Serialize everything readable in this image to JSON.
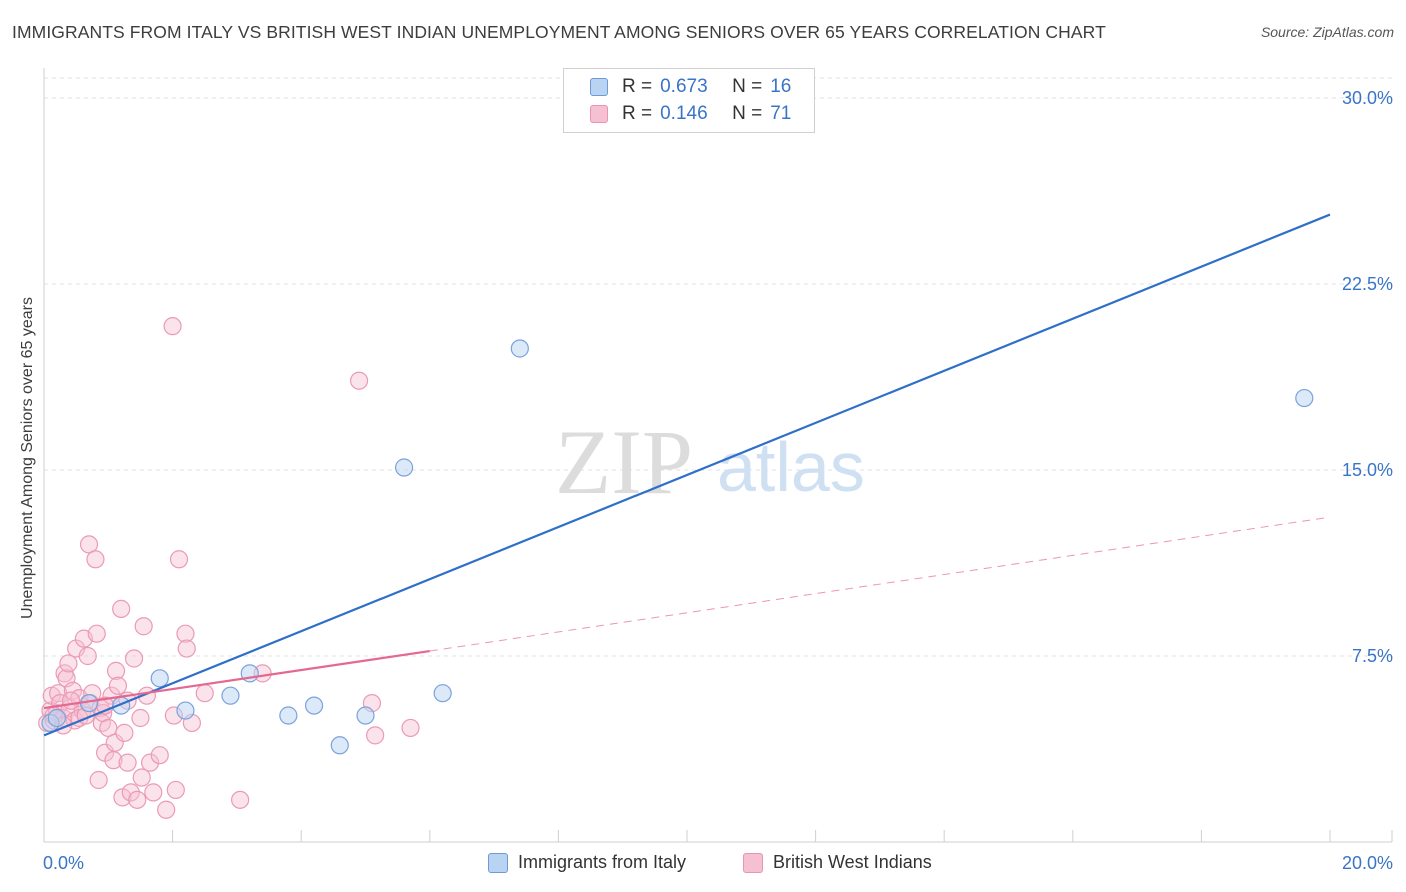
{
  "title": "IMMIGRANTS FROM ITALY VS BRITISH WEST INDIAN UNEMPLOYMENT AMONG SENIORS OVER 65 YEARS CORRELATION CHART",
  "source": "Source: ZipAtlas.com",
  "watermark": {
    "zip": "ZIP",
    "atlas": "atlas"
  },
  "colors": {
    "blue": "#3a74c6",
    "blue_fill": "#b9d3f3",
    "pink": "#e8739a",
    "pink_fill": "#f6c0d3",
    "grid": "#e2e2e2"
  },
  "legend": {
    "rows": [
      {
        "r_label": "R =",
        "r_value": "0.673",
        "n_label": "N =",
        "n_value": "16"
      },
      {
        "r_label": "R =",
        "r_value": "0.146",
        "n_label": "N =",
        "n_value": "71"
      }
    ]
  },
  "bottom_legend": {
    "series1": "Immigrants from Italy",
    "series2": "British West Indians"
  },
  "chart_data": {
    "type": "scatter",
    "title": "IMMIGRANTS FROM ITALY VS BRITISH WEST INDIAN UNEMPLOYMENT AMONG SENIORS OVER 65 YEARS CORRELATION CHART",
    "xlabel": "",
    "ylabel": "Unemployment Among Seniors over 65 years",
    "xlim": [
      0,
      20
    ],
    "ylim": [
      0,
      31
    ],
    "x_tick_labels": [
      "0.0%",
      "20.0%"
    ],
    "y_ticks": [
      7.5,
      15.0,
      22.5,
      30.0
    ],
    "y_tick_labels": [
      "7.5%",
      "15.0%",
      "22.5%",
      "30.0%"
    ],
    "series": [
      {
        "name": "Immigrants from Italy",
        "color": "#3a74c6",
        "points": [
          [
            0.1,
            4.8
          ],
          [
            0.2,
            5.0
          ],
          [
            0.7,
            5.6
          ],
          [
            1.2,
            5.5
          ],
          [
            1.8,
            6.6
          ],
          [
            2.2,
            5.3
          ],
          [
            2.9,
            5.9
          ],
          [
            3.2,
            6.8
          ],
          [
            3.8,
            5.1
          ],
          [
            4.2,
            5.5
          ],
          [
            4.6,
            3.9
          ],
          [
            5.0,
            5.1
          ],
          [
            5.6,
            15.1
          ],
          [
            6.2,
            6.0
          ],
          [
            7.4,
            19.9
          ],
          [
            19.6,
            17.9
          ]
        ],
        "trend": {
          "x": [
            0,
            20
          ],
          "y": [
            4.3,
            25.3
          ],
          "style": "solid"
        }
      },
      {
        "name": "British West Indians",
        "color": "#e8739a",
        "points": [
          [
            0.05,
            4.8
          ],
          [
            0.1,
            5.3
          ],
          [
            0.12,
            5.9
          ],
          [
            0.15,
            4.9
          ],
          [
            0.2,
            5.2
          ],
          [
            0.22,
            6.0
          ],
          [
            0.25,
            5.6
          ],
          [
            0.3,
            5.0
          ],
          [
            0.32,
            6.8
          ],
          [
            0.35,
            6.6
          ],
          [
            0.38,
            7.2
          ],
          [
            0.4,
            5.4
          ],
          [
            0.45,
            6.1
          ],
          [
            0.48,
            4.9
          ],
          [
            0.5,
            7.8
          ],
          [
            0.55,
            5.8
          ],
          [
            0.6,
            5.3
          ],
          [
            0.62,
            8.2
          ],
          [
            0.68,
            7.5
          ],
          [
            0.7,
            12.0
          ],
          [
            0.72,
            5.6
          ],
          [
            0.75,
            6.0
          ],
          [
            0.8,
            11.4
          ],
          [
            0.82,
            8.4
          ],
          [
            0.85,
            2.5
          ],
          [
            0.88,
            5.4
          ],
          [
            0.9,
            4.8
          ],
          [
            0.92,
            5.2
          ],
          [
            0.95,
            3.6
          ],
          [
            1.0,
            4.6
          ],
          [
            1.05,
            5.9
          ],
          [
            1.08,
            3.3
          ],
          [
            1.1,
            4.0
          ],
          [
            1.12,
            6.9
          ],
          [
            1.15,
            6.3
          ],
          [
            1.2,
            9.4
          ],
          [
            1.22,
            1.8
          ],
          [
            1.25,
            4.4
          ],
          [
            1.3,
            3.2
          ],
          [
            1.35,
            2.0
          ],
          [
            1.4,
            7.4
          ],
          [
            1.45,
            1.7
          ],
          [
            1.5,
            5.0
          ],
          [
            1.52,
            2.6
          ],
          [
            1.55,
            8.7
          ],
          [
            1.6,
            5.9
          ],
          [
            1.65,
            3.2
          ],
          [
            1.7,
            2.0
          ],
          [
            1.8,
            3.5
          ],
          [
            1.9,
            1.3
          ],
          [
            2.0,
            20.8
          ],
          [
            2.02,
            5.1
          ],
          [
            2.05,
            2.1
          ],
          [
            2.1,
            11.4
          ],
          [
            2.2,
            8.4
          ],
          [
            2.22,
            7.8
          ],
          [
            2.3,
            4.8
          ],
          [
            2.5,
            6.0
          ],
          [
            3.05,
            1.7
          ],
          [
            3.4,
            6.8
          ],
          [
            4.9,
            18.6
          ],
          [
            5.1,
            5.6
          ],
          [
            5.15,
            4.3
          ],
          [
            5.7,
            4.6
          ],
          [
            0.15,
            5.1
          ],
          [
            0.3,
            4.7
          ],
          [
            0.55,
            5.0
          ],
          [
            0.95,
            5.5
          ],
          [
            1.3,
            5.7
          ],
          [
            0.42,
            5.7
          ],
          [
            0.65,
            5.1
          ]
        ],
        "trend": {
          "x": [
            0,
            6
          ],
          "y": [
            5.4,
            7.7
          ],
          "style": "solid"
        },
        "trend_extension": {
          "x": [
            6,
            20
          ],
          "y": [
            7.7,
            13.1
          ],
          "style": "dashed"
        }
      }
    ],
    "grid": true,
    "legend_position": "top-center"
  }
}
